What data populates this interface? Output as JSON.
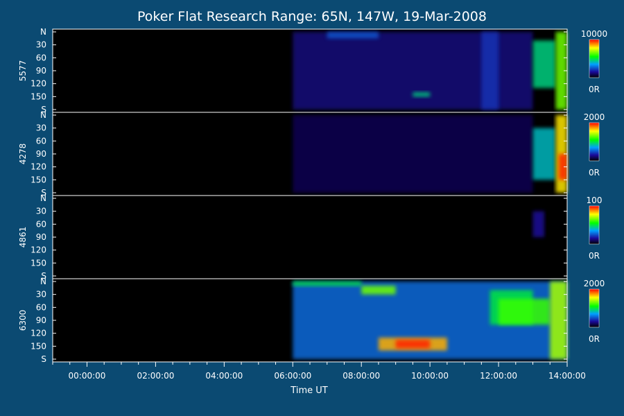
{
  "title": "Poker Flat Research Range: 65N, 147W, 19-Mar-2008",
  "xlabel": "Time UT",
  "x_ticks": [
    "00:00:00",
    "02:00:00",
    "04:00:00",
    "06:00:00",
    "08:00:00",
    "10:00:00",
    "12:00:00",
    "14:00:00"
  ],
  "y_ticks": [
    "N",
    "30",
    "60",
    "90",
    "120",
    "150",
    "S"
  ],
  "colors": {
    "background": "#0b4a72",
    "plot_background": "#000000",
    "axis": "#ffffff",
    "colormap": [
      "#ff0000",
      "#ffff00",
      "#00ff00",
      "#00a0ff",
      "#1a0a9a",
      "#000000"
    ]
  },
  "chart_data": {
    "type": "heatmap",
    "title": "Poker Flat Research Range: 65N, 147W, 19-Mar-2008",
    "xlabel": "Time UT",
    "xlim": [
      "23:00:00",
      "14:00:00"
    ],
    "ylim": [
      "N",
      "S"
    ],
    "grid": false,
    "panels": [
      {
        "ylabel": "5577",
        "colorbar": {
          "max": "10000",
          "min": "0R"
        },
        "data_start": "06:00:00",
        "features": [
          {
            "t0": "06:00:00",
            "t1": "13:00:00",
            "z0": 0,
            "z1": 180,
            "level": 0.12
          },
          {
            "t0": "07:00:00",
            "t1": "08:30:00",
            "z0": 0,
            "z1": 15,
            "level": 0.25
          },
          {
            "t0": "09:30:00",
            "t1": "10:00:00",
            "z0": 140,
            "z1": 150,
            "level": 0.45
          },
          {
            "t0": "11:30:00",
            "t1": "12:00:00",
            "z0": 0,
            "z1": 180,
            "level": 0.2
          },
          {
            "t0": "13:00:00",
            "t1": "13:40:00",
            "z0": 20,
            "z1": 130,
            "level": 0.45
          },
          {
            "t0": "13:40:00",
            "t1": "14:00:00",
            "z0": 0,
            "z1": 180,
            "level": 0.65
          }
        ]
      },
      {
        "ylabel": "4278",
        "colorbar": {
          "max": "2000",
          "min": "0R"
        },
        "data_start": "06:00:00",
        "features": [
          {
            "t0": "06:00:00",
            "t1": "13:00:00",
            "z0": 0,
            "z1": 180,
            "level": 0.08
          },
          {
            "t0": "13:00:00",
            "t1": "13:40:00",
            "z0": 30,
            "z1": 150,
            "level": 0.4
          },
          {
            "t0": "13:40:00",
            "t1": "14:00:00",
            "z0": 0,
            "z1": 180,
            "level": 0.8
          },
          {
            "t0": "13:45:00",
            "t1": "14:00:00",
            "z0": 90,
            "z1": 150,
            "level": 0.97
          }
        ]
      },
      {
        "ylabel": "4861",
        "colorbar": {
          "max": "100",
          "min": "0R"
        },
        "data_start": "06:00:00",
        "features": [
          {
            "t0": "13:00:00",
            "t1": "13:20:00",
            "z0": 30,
            "z1": 90,
            "level": 0.15
          }
        ]
      },
      {
        "ylabel": "6300",
        "colorbar": {
          "max": "2000",
          "min": "0R"
        },
        "data_start": "06:00:00",
        "features": [
          {
            "t0": "06:00:00",
            "t1": "14:00:00",
            "z0": 0,
            "z1": 180,
            "level": 0.28
          },
          {
            "t0": "06:00:00",
            "t1": "08:00:00",
            "z0": 0,
            "z1": 10,
            "level": 0.5
          },
          {
            "t0": "08:00:00",
            "t1": "09:00:00",
            "z0": 10,
            "z1": 30,
            "level": 0.65
          },
          {
            "t0": "08:30:00",
            "t1": "10:30:00",
            "z0": 130,
            "z1": 160,
            "level": 0.85
          },
          {
            "t0": "09:00:00",
            "t1": "10:00:00",
            "z0": 135,
            "z1": 155,
            "level": 0.97
          },
          {
            "t0": "11:45:00",
            "t1": "13:00:00",
            "z0": 20,
            "z1": 100,
            "level": 0.5
          },
          {
            "t0": "12:00:00",
            "t1": "13:30:00",
            "z0": 40,
            "z1": 100,
            "level": 0.6
          },
          {
            "t0": "13:30:00",
            "t1": "14:00:00",
            "z0": 0,
            "z1": 180,
            "level": 0.7
          }
        ]
      }
    ]
  }
}
